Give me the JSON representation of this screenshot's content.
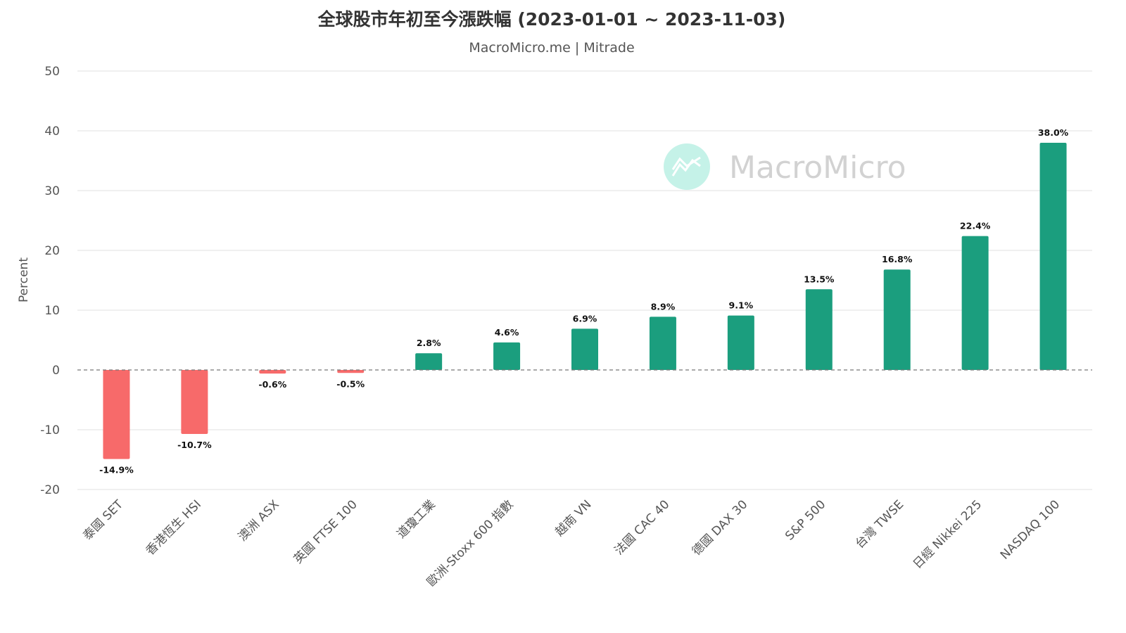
{
  "chart_data": {
    "type": "bar",
    "title": "全球股市年初至今漲跌幅 (2023-01-01 ~ 2023-11-03)",
    "subtitle": "MacroMicro.me | Mitrade",
    "ylabel": "Percent",
    "xlabel": "",
    "ylim": [
      -20,
      50
    ],
    "yticks": [
      50,
      40,
      30,
      20,
      10,
      0,
      -10,
      -20
    ],
    "grid": true,
    "categories": [
      "泰國 SET",
      "香港恆生 HSI",
      "澳洲 ASX",
      "英國 FTSE 100",
      "道瓊工業",
      "歐洲-Stoxx 600 指數",
      "越南 VN",
      "法國 CAC 40",
      "德國 DAX 30",
      "S&P 500",
      "台灣 TWSE",
      "日經 Nikkei 225",
      "NASDAQ 100"
    ],
    "values": [
      -14.9,
      -10.7,
      -0.6,
      -0.5,
      2.8,
      4.6,
      6.9,
      8.9,
      9.1,
      13.5,
      16.8,
      22.4,
      38.0
    ],
    "data_labels": [
      "-14.9%",
      "-10.7%",
      "-0.6%",
      "-0.5%",
      "2.8%",
      "4.6%",
      "6.9%",
      "8.9%",
      "9.1%",
      "13.5%",
      "16.8%",
      "22.4%",
      "38.0%"
    ],
    "colors": {
      "positive": "#1b9e7e",
      "negative": "#f76a6a",
      "zero_line": "#777777",
      "grid": "#e2e2e2"
    },
    "watermark": {
      "text": "MacroMicro",
      "icon": "macromicro-logo-icon",
      "icon_color": "#c5f2e8"
    }
  }
}
